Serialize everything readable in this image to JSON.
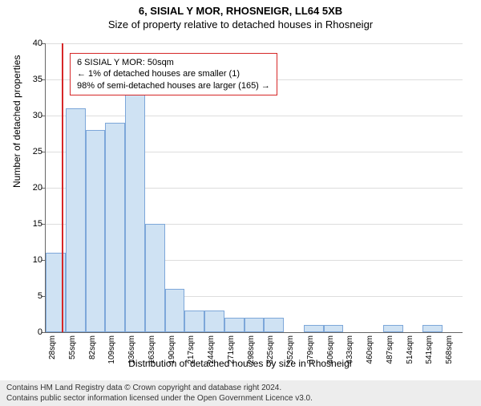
{
  "title": "6, SISIAL Y MOR, RHOSNEIGR, LL64 5XB",
  "subtitle": "Size of property relative to detached houses in Rhosneigr",
  "chart": {
    "type": "histogram",
    "ylabel": "Number of detached properties",
    "xlabel": "Distribution of detached houses by size in Rhosneigr",
    "ylim": [
      0,
      40
    ],
    "ytick_step": 5,
    "x_min": 28,
    "x_max": 582,
    "x_tick_step": 27,
    "x_tick_unit": "sqm",
    "bar_color": "#cfe2f3",
    "bar_border_color": "#7da7d9",
    "grid_color": "#dddddd",
    "background_color": "#ffffff",
    "marker_color": "#d62728",
    "marker_x": 50,
    "values": [
      11,
      31,
      28,
      29,
      33,
      15,
      6,
      3,
      3,
      2,
      2,
      2,
      0,
      1,
      1,
      0,
      0,
      1,
      0,
      1,
      0
    ],
    "info_box": {
      "line1": "6 SISIAL Y MOR: 50sqm",
      "line2": "← 1% of detached houses are smaller (1)",
      "line3": "98% of semi-detached houses are larger (165) →"
    }
  },
  "footer": {
    "line1": "Contains HM Land Registry data © Crown copyright and database right 2024.",
    "line2": "Contains public sector information licensed under the Open Government Licence v3.0."
  }
}
